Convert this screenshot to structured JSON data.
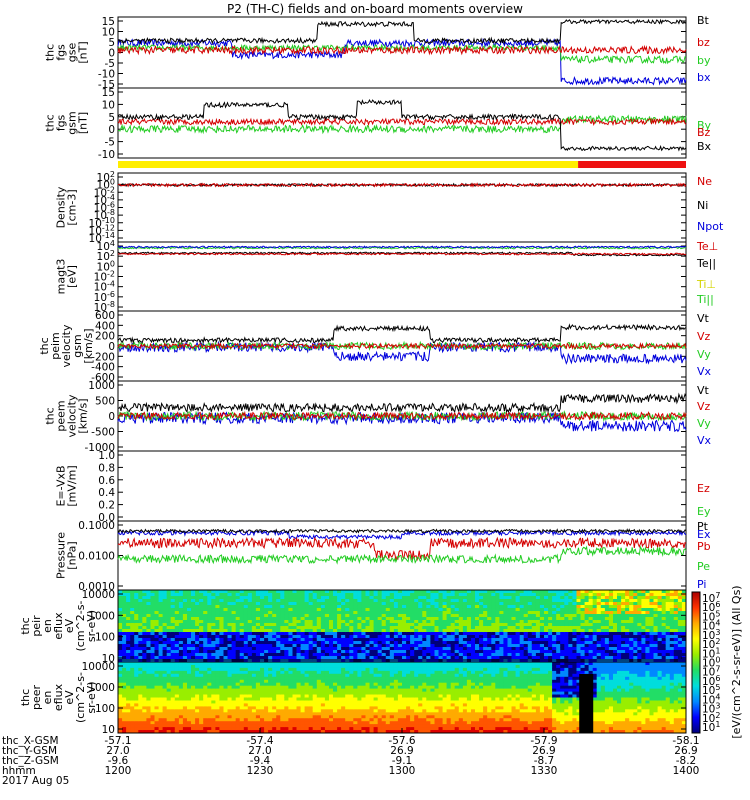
{
  "title": "P2 (TH-C) fields and on-board moments overview",
  "chart_data": {
    "type": "line",
    "panels": [
      {
        "id": "fgs_gse",
        "ylabel": [
          "thc",
          "fgs",
          "gse",
          "[nT]"
        ],
        "ticks": [
          "15",
          "10",
          "5",
          "0",
          "-5",
          "-10",
          "-15"
        ],
        "ylim": [
          -15,
          15
        ],
        "scale": "linear",
        "legend": [
          {
            "name": "Bt",
            "color": "#000000"
          },
          {
            "name": "bz",
            "color": "#d40000"
          },
          {
            "name": "by",
            "color": "#22cc22"
          },
          {
            "name": "bx",
            "color": "#0000dd"
          }
        ]
      },
      {
        "id": "fgs_gsm",
        "ylabel": [
          "thc",
          "fgs",
          "gsm",
          "[nT]"
        ],
        "ticks": [
          "15",
          "10",
          "5",
          "0",
          "-5",
          "-10"
        ],
        "ylim": [
          -13,
          16
        ],
        "scale": "linear",
        "legend": [
          {
            "name": "By",
            "color": "#22cc22"
          },
          {
            "name": "Bz",
            "color": "#d40000"
          },
          {
            "name": "Bx",
            "color": "#000000"
          }
        ]
      },
      {
        "id": "density",
        "ylabel": [
          "Density",
          "[cm-3]"
        ],
        "ticks": [
          "10^2",
          "10^0",
          "10^-2",
          "10^-4",
          "10^-6",
          "10^-8",
          "10^-10",
          "10^-12",
          "10^-14"
        ],
        "scale": "log",
        "legend": [
          {
            "name": "Ne",
            "color": "#d40000"
          },
          {
            "name": "Ni",
            "color": "#000000"
          },
          {
            "name": "Npot",
            "color": "#0000dd"
          }
        ]
      },
      {
        "id": "temperature",
        "ylabel": [
          "magt3",
          "[eV]"
        ],
        "ticks": [
          "10^4",
          "10^2",
          "10^0",
          "10^-2",
          "10^-4",
          "10^-6",
          "10^-8"
        ],
        "scale": "log",
        "legend": [
          {
            "name": "Te⊥",
            "color": "#d40000"
          },
          {
            "name": "Te||",
            "color": "#000000"
          },
          {
            "name": "Ti⊥",
            "color": "#d4d400"
          },
          {
            "name": "Ti||",
            "color": "#22cc22"
          }
        ]
      },
      {
        "id": "peim_velocity",
        "ylabel": [
          "thc",
          "peim",
          "velocity",
          "gsm",
          "[km/s]"
        ],
        "ticks": [
          "600",
          "400",
          "200",
          "0",
          "-200",
          "-400",
          "-600"
        ],
        "ylim": [
          -600,
          600
        ],
        "scale": "linear",
        "legend": [
          {
            "name": "Vt",
            "color": "#000000"
          },
          {
            "name": "Vz",
            "color": "#d40000"
          },
          {
            "name": "Vy",
            "color": "#22cc22"
          },
          {
            "name": "Vx",
            "color": "#0000dd"
          }
        ]
      },
      {
        "id": "peem_velocity",
        "ylabel": [
          "thc",
          "peem",
          "velocity",
          "[km/s]"
        ],
        "ticks": [
          "1000",
          "500",
          "0",
          "-500",
          "-1000"
        ],
        "ylim": [
          -1000,
          1000
        ],
        "scale": "linear",
        "legend": [
          {
            "name": "Vt",
            "color": "#000000"
          },
          {
            "name": "Vz",
            "color": "#d40000"
          },
          {
            "name": "Vy",
            "color": "#22cc22"
          },
          {
            "name": "Vx",
            "color": "#0000dd"
          }
        ]
      },
      {
        "id": "efield",
        "ylabel": [
          "E=-VxB",
          "[mV/m]"
        ],
        "ticks": [
          "1.0",
          "0.8",
          "0.6",
          "0.4",
          "0.2",
          "0.0"
        ],
        "ylim": [
          0,
          1
        ],
        "scale": "linear",
        "legend": [
          {
            "name": "Ez",
            "color": "#d40000"
          },
          {
            "name": "Ey",
            "color": "#22cc22"
          },
          {
            "name": "Ex",
            "color": "#0000dd"
          }
        ]
      },
      {
        "id": "pressure",
        "ylabel": [
          "Pressure",
          "[nPa]"
        ],
        "ticks": [
          "0.1000",
          "0.0100",
          "0.0010"
        ],
        "scale": "log",
        "legend": [
          {
            "name": "Pt",
            "color": "#000000"
          },
          {
            "name": "Pb",
            "color": "#d40000"
          },
          {
            "name": "Pe",
            "color": "#22cc22"
          },
          {
            "name": "Pi",
            "color": "#0000dd"
          }
        ]
      },
      {
        "id": "peir_spec",
        "ylabel": [
          "thc",
          "peir",
          "en",
          "eflux",
          "eV",
          "(cm^2-s-",
          "sr-eV)"
        ],
        "ticks": [
          "10000",
          "1000",
          "100",
          "10"
        ],
        "scale": "log",
        "type": "heatmap"
      },
      {
        "id": "peer_spec",
        "ylabel": [
          "thc",
          "peer",
          "en",
          "eflux",
          "eV",
          "(cm^2-s-",
          "sr-eV)"
        ],
        "ticks": [
          "10000",
          "1000",
          "100",
          "10"
        ],
        "scale": "log",
        "type": "heatmap"
      }
    ],
    "colorbar": {
      "ticks": [
        "10^7",
        "10^6",
        "10^5",
        "10^4",
        "10^3",
        "10^2",
        "10^1",
        "10^0",
        "10^7",
        "10^6",
        "10^5",
        "10^4",
        "10^3",
        "10^2",
        "10^1"
      ],
      "label": "[eV/(cm^2-s-sr-eV)] (All Qs)"
    },
    "x_axis": {
      "ticks": [
        "-57.1",
        "-57.4",
        "-57.6",
        "-57.9",
        "-58.1"
      ],
      "rows": [
        {
          "name": "thc_X-GSM",
          "values": [
            "-57.1",
            "-57.4",
            "-57.6",
            "-57.9",
            "-58.1"
          ]
        },
        {
          "name": "thc_Y-GSM",
          "values": [
            "27.0",
            "27.0",
            "26.9",
            "26.9",
            "26.9"
          ]
        },
        {
          "name": "thc_Z-GSM",
          "values": [
            "-9.6",
            "-9.4",
            "-9.1",
            "-8.7",
            "-8.2"
          ]
        },
        {
          "name": "hhmm",
          "values": [
            "1200",
            "1230",
            "1300",
            "1330",
            "1400"
          ]
        }
      ],
      "date": "2017 Aug 05"
    },
    "mode_bar": {
      "segments": [
        {
          "from": 0,
          "to": 0.81,
          "color": "#ffee00"
        },
        {
          "from": 0.81,
          "to": 1,
          "color": "#ee1111"
        }
      ]
    }
  }
}
